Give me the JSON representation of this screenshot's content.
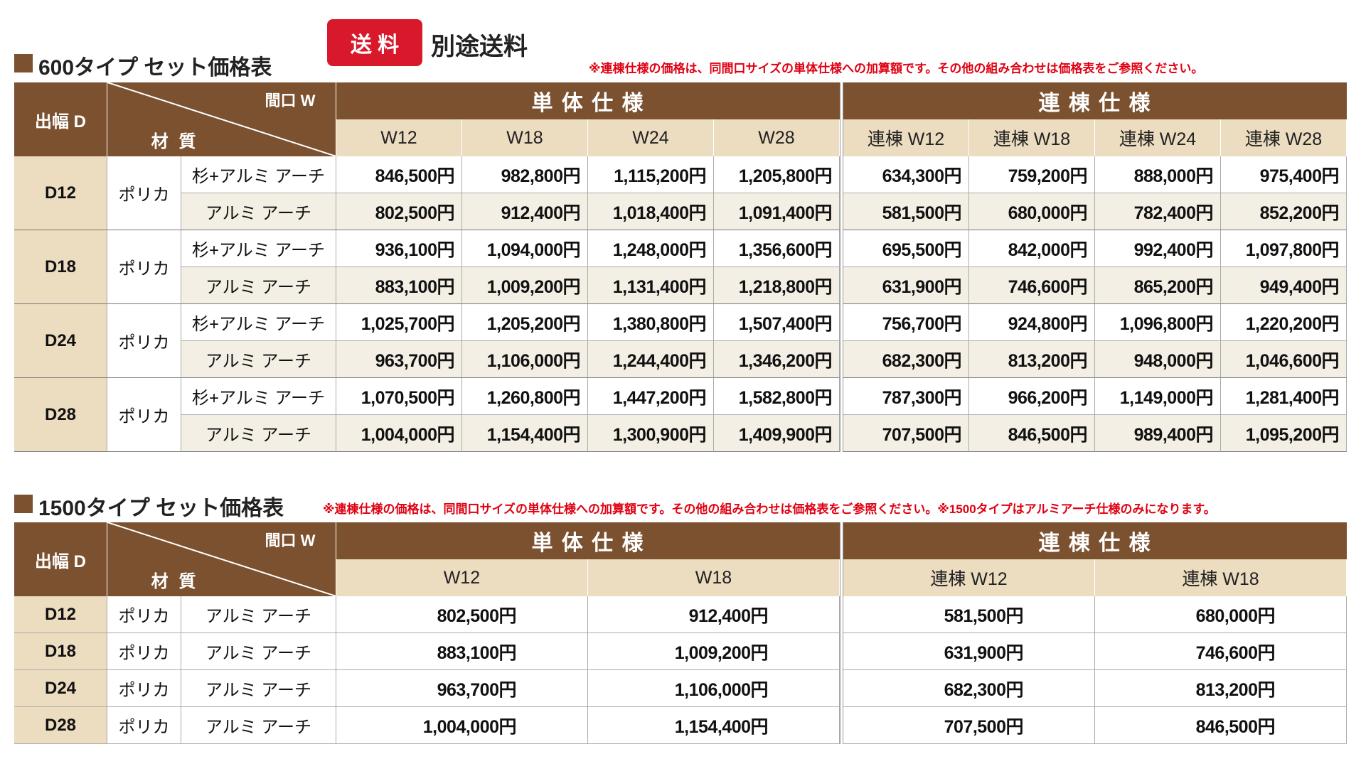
{
  "header": {
    "badge": "送 料",
    "shipping": "別途送料"
  },
  "table1": {
    "title": "600タイプ セット価格表",
    "note": "※連棟仕様の価格は、同間口サイズの単体仕様への加算額です。その他の組み合わせは価格表をご参照ください。",
    "corner": {
      "d_label": "出幅 D",
      "w_label": "間口 W",
      "material_label": "材 質"
    },
    "groups": [
      "単 体 仕 様",
      "連 棟 仕 様"
    ],
    "columns": [
      "W12",
      "W18",
      "W24",
      "W28",
      "連棟 W12",
      "連棟 W18",
      "連棟 W24",
      "連棟 W28"
    ],
    "rows": [
      {
        "size": "D12",
        "material": "ポリカ",
        "variants": [
          {
            "type": "杉+アルミ アーチ",
            "prices": [
              "846,500円",
              "982,800円",
              "1,115,200円",
              "1,205,800円",
              "634,300円",
              "759,200円",
              "888,000円",
              "975,400円"
            ]
          },
          {
            "type": "アルミ アーチ",
            "prices": [
              "802,500円",
              "912,400円",
              "1,018,400円",
              "1,091,400円",
              "581,500円",
              "680,000円",
              "782,400円",
              "852,200円"
            ]
          }
        ]
      },
      {
        "size": "D18",
        "material": "ポリカ",
        "variants": [
          {
            "type": "杉+アルミ アーチ",
            "prices": [
              "936,100円",
              "1,094,000円",
              "1,248,000円",
              "1,356,600円",
              "695,500円",
              "842,000円",
              "992,400円",
              "1,097,800円"
            ]
          },
          {
            "type": "アルミ アーチ",
            "prices": [
              "883,100円",
              "1,009,200円",
              "1,131,400円",
              "1,218,800円",
              "631,900円",
              "746,600円",
              "865,200円",
              "949,400円"
            ]
          }
        ]
      },
      {
        "size": "D24",
        "material": "ポリカ",
        "variants": [
          {
            "type": "杉+アルミ アーチ",
            "prices": [
              "1,025,700円",
              "1,205,200円",
              "1,380,800円",
              "1,507,400円",
              "756,700円",
              "924,800円",
              "1,096,800円",
              "1,220,200円"
            ]
          },
          {
            "type": "アルミ アーチ",
            "prices": [
              "963,700円",
              "1,106,000円",
              "1,244,400円",
              "1,346,200円",
              "682,300円",
              "813,200円",
              "948,000円",
              "1,046,600円"
            ]
          }
        ]
      },
      {
        "size": "D28",
        "material": "ポリカ",
        "variants": [
          {
            "type": "杉+アルミ アーチ",
            "prices": [
              "1,070,500円",
              "1,260,800円",
              "1,447,200円",
              "1,582,800円",
              "787,300円",
              "966,200円",
              "1,149,000円",
              "1,281,400円"
            ]
          },
          {
            "type": "アルミ アーチ",
            "prices": [
              "1,004,000円",
              "1,154,400円",
              "1,300,900円",
              "1,409,900円",
              "707,500円",
              "846,500円",
              "989,400円",
              "1,095,200円"
            ]
          }
        ]
      }
    ]
  },
  "table2": {
    "title": "1500タイプ セット価格表",
    "note": "※連棟仕様の価格は、同間口サイズの単体仕様への加算額です。その他の組み合わせは価格表をご参照ください。※1500タイプはアルミアーチ仕様のみになります。",
    "corner": {
      "d_label": "出幅 D",
      "w_label": "間口 W",
      "material_label": "材 質"
    },
    "groups": [
      "単 体 仕 様",
      "連 棟 仕 様"
    ],
    "columns": [
      "W12",
      "W18",
      "連棟 W12",
      "連棟 W18"
    ],
    "rows": [
      {
        "size": "D12",
        "material": "ポリカ",
        "type": "アルミ アーチ",
        "prices": [
          "802,500円",
          "912,400円",
          "581,500円",
          "680,000円"
        ]
      },
      {
        "size": "D18",
        "material": "ポリカ",
        "type": "アルミ アーチ",
        "prices": [
          "883,100円",
          "1,009,200円",
          "631,900円",
          "746,600円"
        ]
      },
      {
        "size": "D24",
        "material": "ポリカ",
        "type": "アルミ アーチ",
        "prices": [
          "963,700円",
          "1,106,000円",
          "682,300円",
          "813,200円"
        ]
      },
      {
        "size": "D28",
        "material": "ポリカ",
        "type": "アルミ アーチ",
        "prices": [
          "1,004,000円",
          "1,154,400円",
          "707,500円",
          "846,500円"
        ]
      }
    ]
  }
}
